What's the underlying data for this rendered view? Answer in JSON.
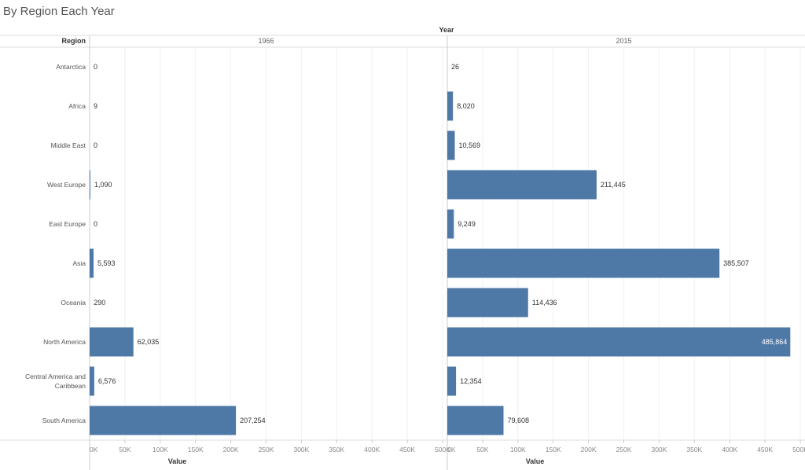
{
  "title": "By Region Each Year",
  "chart_data": {
    "type": "bar",
    "orientation": "horizontal",
    "title": "By Region Each Year",
    "column_header": "Year",
    "row_header": "Region",
    "xlabel": "Value",
    "xlim": [
      0,
      500000
    ],
    "x_ticks": [
      "0K",
      "50K",
      "100K",
      "150K",
      "200K",
      "250K",
      "300K",
      "350K",
      "400K",
      "450K",
      "500K"
    ],
    "categories": [
      "Antarctica",
      "Africa",
      "Middle East",
      "West Europe",
      "East Europe",
      "Asia",
      "Oceania",
      "North America",
      "Central America and Caribbean",
      "South America"
    ],
    "series": [
      {
        "name": "1966",
        "values": [
          0,
          9,
          0,
          1090,
          0,
          5593,
          290,
          62035,
          6576,
          207254
        ],
        "labels": [
          "0",
          "9",
          "0",
          "1,090",
          "0",
          "5,593",
          "290",
          "62,035",
          "6,576",
          "207,254"
        ]
      },
      {
        "name": "2015",
        "values": [
          26,
          8020,
          10569,
          211445,
          9249,
          385507,
          114436,
          485864,
          12354,
          79608
        ],
        "labels": [
          "26",
          "8,020",
          "10,569",
          "211,445",
          "9,249",
          "385,507",
          "114,436",
          "485,864",
          "12,354",
          "79,608"
        ]
      }
    ],
    "bar_color": "#4e79a7",
    "grid": true
  }
}
